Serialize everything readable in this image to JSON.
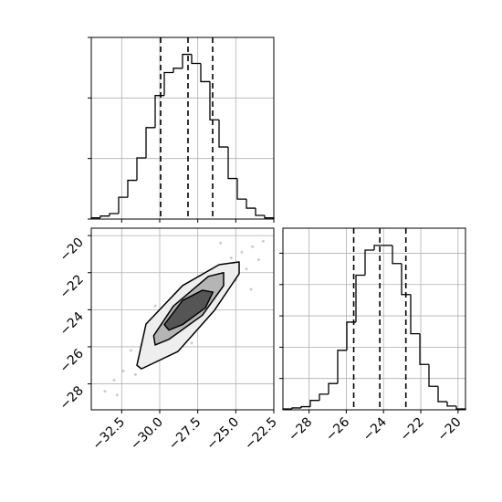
{
  "chart_data": [
    {
      "type": "histogram",
      "color": "#000000",
      "bins": [
        -34.5,
        -33.9,
        -33.3,
        -32.7,
        -32.1,
        -31.5,
        -30.9,
        -30.3,
        -29.7,
        -29.1,
        -28.5,
        -27.9,
        -27.3,
        -26.7,
        -26.1,
        -25.5,
        -24.9,
        -24.3,
        -23.7,
        -23.1,
        -22.5
      ],
      "values": [
        0.02,
        0.05,
        0.09,
        0.36,
        0.64,
        1.01,
        1.51,
        2.04,
        2.42,
        2.49,
        2.72,
        2.57,
        2.27,
        1.64,
        1.19,
        0.67,
        0.33,
        0.18,
        0.06,
        0.02
      ],
      "quantiles": [
        -29.94,
        -28.14,
        -26.52
      ],
      "xlim": [
        -34.5,
        -22.5
      ],
      "xticks": [
        -32.5,
        -30,
        -27.5,
        -25,
        -22.5
      ],
      "ylim": [
        0,
        3
      ],
      "yticks": [
        0,
        1,
        2,
        3
      ],
      "grid": true
    },
    {
      "type": "scatter",
      "color": "#000000",
      "x": [
        -33.0,
        -32.4,
        -31.9,
        -31.6,
        -31.2,
        -30.8,
        -30.5,
        -30.1,
        -29.8,
        -29.5,
        -29.2,
        -28.9,
        -28.6,
        -28.3,
        -28.0,
        -27.7,
        -27.4,
        -27.1,
        -26.8,
        -26.5,
        -26.2,
        -25.9,
        -25.6,
        -25.3,
        -25.0,
        -24.6,
        -24.3,
        -23.9,
        -23.5,
        -23.2,
        -33.6,
        -32.8,
        -27.9,
        -24.0,
        -30.3,
        -26.0
      ],
      "y": [
        -27.8,
        -27.3,
        -26.2,
        -27.5,
        -25.9,
        -26.6,
        -25.0,
        -26.1,
        -24.6,
        -25.7,
        -24.1,
        -25.2,
        -23.6,
        -24.5,
        -23.2,
        -24.8,
        -23.0,
        -22.6,
        -23.9,
        -22.1,
        -23.3,
        -21.6,
        -22.8,
        -21.2,
        -22.4,
        -20.9,
        -21.8,
        -20.6,
        -21.3,
        -20.3,
        -28.4,
        -28.6,
        -25.8,
        -22.9,
        -23.8,
        -20.4
      ],
      "contours": [
        {
          "x": [
            -31.5,
            -30.9,
            -28.5,
            -26.1,
            -24.78,
            -24.78,
            -26.4,
            -28.8,
            -31.2
          ],
          "y": [
            -27.0,
            -24.77,
            -22.7,
            -21.57,
            -21.42,
            -22.06,
            -24.03,
            -26.25,
            -27.19
          ],
          "color": "#eeeeee"
        },
        {
          "x": [
            -30.4,
            -29.1,
            -26.8,
            -25.8,
            -25.8,
            -27.2,
            -29.4,
            -30.3
          ],
          "y": [
            -25.4,
            -23.8,
            -22.2,
            -22.0,
            -22.7,
            -24.3,
            -25.6,
            -25.9
          ],
          "color": "#b5b5b5"
        },
        {
          "x": [
            -29.7,
            -28.5,
            -27.2,
            -26.5,
            -27.0,
            -28.5,
            -29.4
          ],
          "y": [
            -24.8,
            -23.5,
            -22.95,
            -23.05,
            -23.9,
            -24.8,
            -25.1
          ],
          "color": "#555555"
        }
      ],
      "xlim": [
        -34.5,
        -22.5
      ],
      "xticks": [
        {
          "value": -32.5,
          "label": "−32.5"
        },
        {
          "value": -30,
          "label": "−30.0"
        },
        {
          "value": -27.5,
          "label": "−27.5"
        },
        {
          "value": -25,
          "label": "−25.0"
        },
        {
          "value": -22.5,
          "label": "−22.5"
        }
      ],
      "ylim": [
        -29.4,
        -19.6
      ],
      "yticks": [
        {
          "value": -20,
          "label": "−20"
        },
        {
          "value": -22,
          "label": "−22"
        },
        {
          "value": -24,
          "label": "−24"
        },
        {
          "value": -26,
          "label": "−26"
        },
        {
          "value": -28,
          "label": "−28"
        }
      ],
      "grid": true
    },
    {
      "type": "histogram",
      "color": "#000000",
      "bins": [
        -29.4,
        -28.91,
        -28.42,
        -27.93,
        -27.44,
        -26.95,
        -26.46,
        -25.97,
        -25.48,
        -24.99,
        -24.5,
        -24.01,
        -23.52,
        -23.03,
        -22.54,
        -22.05,
        -21.56,
        -21.07,
        -20.58,
        -20.09,
        -19.6
      ],
      "values": [
        0.03,
        0.06,
        0.1,
        0.3,
        0.5,
        0.84,
        1.9,
        2.8,
        4.3,
        5.1,
        5.25,
        5.25,
        4.67,
        3.68,
        2.43,
        1.45,
        0.75,
        0.26,
        0.12,
        0.03
      ],
      "quantiles": [
        -25.6,
        -24.2,
        -22.8
      ],
      "xlim": [
        -29.4,
        -19.6
      ],
      "xticks": [
        {
          "value": -28,
          "label": "−28"
        },
        {
          "value": -26,
          "label": "−26"
        },
        {
          "value": -24,
          "label": "−24"
        },
        {
          "value": -22,
          "label": "−22"
        },
        {
          "value": -20,
          "label": "−20"
        }
      ],
      "ylim": [
        0,
        5.8
      ],
      "yticks": [
        1,
        2,
        3,
        4,
        5
      ],
      "grid": true
    }
  ]
}
